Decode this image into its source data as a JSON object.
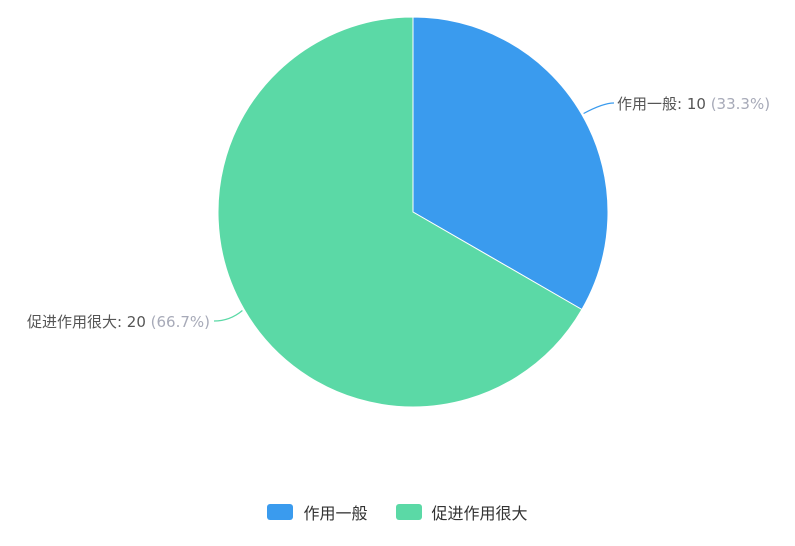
{
  "chart_data": {
    "type": "pie",
    "categories": [
      "作用一般",
      "促进作用很大"
    ],
    "values": [
      10,
      20
    ],
    "percent_labels": [
      "(33.3%)",
      "(66.7%)"
    ],
    "colors": [
      "#3a9bee",
      "#5bd9a6"
    ],
    "start": "12 o'clock",
    "direction": "clockwise",
    "legend_position": "bottom",
    "label_text_color": "#555555",
    "label_percent_color": "#a7aab8"
  }
}
